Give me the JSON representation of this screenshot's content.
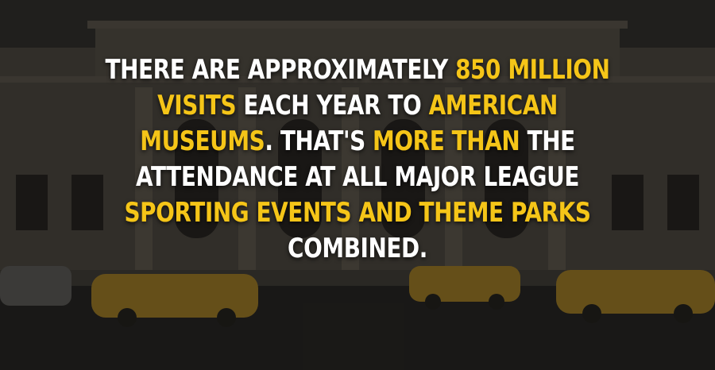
{
  "colors": {
    "text": "#ffffff",
    "highlight": "#f5c518",
    "overlay": "rgba(0,0,0,0.45)"
  },
  "background": {
    "description_icon": "museum-facade-with-taxis-photo"
  },
  "caption": {
    "lines": [
      [
        {
          "text": "THERE ARE APPROXIMATELY ",
          "highlight": false
        },
        {
          "text": "850 MILLION",
          "highlight": true
        }
      ],
      [
        {
          "text": "VISITS",
          "highlight": true
        },
        {
          "text": " EACH YEAR TO ",
          "highlight": false
        },
        {
          "text": "AMERICAN",
          "highlight": true
        }
      ],
      [
        {
          "text": "MUSEUMS",
          "highlight": true
        },
        {
          "text": ". THAT'S ",
          "highlight": false
        },
        {
          "text": "MORE THAN",
          "highlight": true
        },
        {
          "text": " THE",
          "highlight": false
        }
      ],
      [
        {
          "text": "ATTENDANCE AT ALL MAJOR LEAGUE",
          "highlight": false
        }
      ],
      [
        {
          "text": "SPORTING EVENTS AND THEME PARKS",
          "highlight": true
        }
      ],
      [
        {
          "text": "COMBINED.",
          "highlight": false
        }
      ]
    ]
  }
}
